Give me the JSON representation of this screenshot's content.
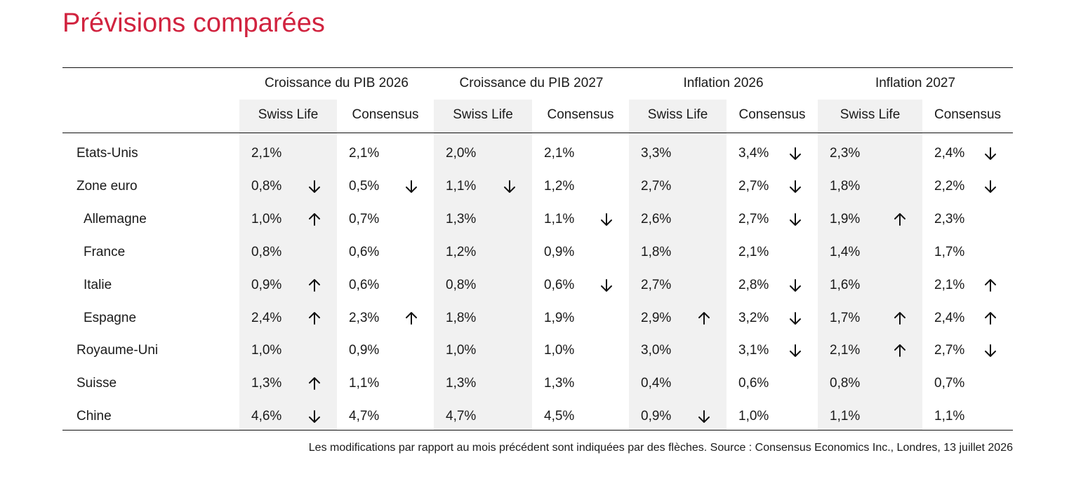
{
  "title": "Prévisions comparées",
  "chart_data": {
    "type": "table",
    "groups": [
      "Croissance du PIB 2026",
      "Croissance du PIB 2027",
      "Inflation 2026",
      "Inflation 2027"
    ],
    "subcolumns": [
      "Swiss Life",
      "Consensus"
    ],
    "rows": [
      {
        "country": "Etats-Unis",
        "indent": false,
        "cells": [
          {
            "v": "2,1%",
            "a": ""
          },
          {
            "v": "2,1%",
            "a": ""
          },
          {
            "v": "2,0%",
            "a": ""
          },
          {
            "v": "2,1%",
            "a": ""
          },
          {
            "v": "3,3%",
            "a": ""
          },
          {
            "v": "3,4%",
            "a": "down"
          },
          {
            "v": "2,3%",
            "a": ""
          },
          {
            "v": "2,4%",
            "a": "down"
          }
        ]
      },
      {
        "country": "Zone euro",
        "indent": false,
        "cells": [
          {
            "v": "0,8%",
            "a": "down"
          },
          {
            "v": "0,5%",
            "a": "down"
          },
          {
            "v": "1,1%",
            "a": "down"
          },
          {
            "v": "1,2%",
            "a": ""
          },
          {
            "v": "2,7%",
            "a": ""
          },
          {
            "v": "2,7%",
            "a": "down"
          },
          {
            "v": "1,8%",
            "a": ""
          },
          {
            "v": "2,2%",
            "a": "down"
          }
        ]
      },
      {
        "country": "Allemagne",
        "indent": true,
        "cells": [
          {
            "v": "1,0%",
            "a": "up"
          },
          {
            "v": "0,7%",
            "a": ""
          },
          {
            "v": "1,3%",
            "a": ""
          },
          {
            "v": "1,1%",
            "a": "down"
          },
          {
            "v": "2,6%",
            "a": ""
          },
          {
            "v": "2,7%",
            "a": "down"
          },
          {
            "v": "1,9%",
            "a": "up"
          },
          {
            "v": "2,3%",
            "a": ""
          }
        ]
      },
      {
        "country": "France",
        "indent": true,
        "cells": [
          {
            "v": "0,8%",
            "a": ""
          },
          {
            "v": "0,6%",
            "a": ""
          },
          {
            "v": "1,2%",
            "a": ""
          },
          {
            "v": "0,9%",
            "a": ""
          },
          {
            "v": "1,8%",
            "a": ""
          },
          {
            "v": "2,1%",
            "a": ""
          },
          {
            "v": "1,4%",
            "a": ""
          },
          {
            "v": "1,7%",
            "a": ""
          }
        ]
      },
      {
        "country": "Italie",
        "indent": true,
        "cells": [
          {
            "v": "0,9%",
            "a": "up"
          },
          {
            "v": "0,6%",
            "a": ""
          },
          {
            "v": "0,8%",
            "a": ""
          },
          {
            "v": "0,6%",
            "a": "down"
          },
          {
            "v": "2,7%",
            "a": ""
          },
          {
            "v": "2,8%",
            "a": "down"
          },
          {
            "v": "1,6%",
            "a": ""
          },
          {
            "v": "2,1%",
            "a": "up"
          }
        ]
      },
      {
        "country": "Espagne",
        "indent": true,
        "cells": [
          {
            "v": "2,4%",
            "a": "up"
          },
          {
            "v": "2,3%",
            "a": "up"
          },
          {
            "v": "1,8%",
            "a": ""
          },
          {
            "v": "1,9%",
            "a": ""
          },
          {
            "v": "2,9%",
            "a": "up"
          },
          {
            "v": "3,2%",
            "a": "down"
          },
          {
            "v": "1,7%",
            "a": "up"
          },
          {
            "v": "2,4%",
            "a": "up"
          }
        ]
      },
      {
        "country": "Royaume-Uni",
        "indent": false,
        "cells": [
          {
            "v": "1,0%",
            "a": ""
          },
          {
            "v": "0,9%",
            "a": ""
          },
          {
            "v": "1,0%",
            "a": ""
          },
          {
            "v": "1,0%",
            "a": ""
          },
          {
            "v": "3,0%",
            "a": ""
          },
          {
            "v": "3,1%",
            "a": "down"
          },
          {
            "v": "2,1%",
            "a": "up"
          },
          {
            "v": "2,7%",
            "a": "down"
          }
        ]
      },
      {
        "country": "Suisse",
        "indent": false,
        "cells": [
          {
            "v": "1,3%",
            "a": "up"
          },
          {
            "v": "1,1%",
            "a": ""
          },
          {
            "v": "1,3%",
            "a": ""
          },
          {
            "v": "1,3%",
            "a": ""
          },
          {
            "v": "0,4%",
            "a": ""
          },
          {
            "v": "0,6%",
            "a": ""
          },
          {
            "v": "0,8%",
            "a": ""
          },
          {
            "v": "0,7%",
            "a": ""
          }
        ]
      },
      {
        "country": "Chine",
        "indent": false,
        "cells": [
          {
            "v": "4,6%",
            "a": "down"
          },
          {
            "v": "4,7%",
            "a": ""
          },
          {
            "v": "4,7%",
            "a": ""
          },
          {
            "v": "4,5%",
            "a": ""
          },
          {
            "v": "0,9%",
            "a": "down"
          },
          {
            "v": "1,0%",
            "a": ""
          },
          {
            "v": "1,1%",
            "a": ""
          },
          {
            "v": "1,1%",
            "a": ""
          }
        ]
      }
    ]
  },
  "footnote": "Les modifications par rapport au mois précédent sont indiquées par des flèches. Source : Consensus Economics Inc., Londres, 13 juillet 2026",
  "colors": {
    "title": "#d1233f",
    "shade": "#f1f1f1",
    "text": "#1a1a1a"
  }
}
